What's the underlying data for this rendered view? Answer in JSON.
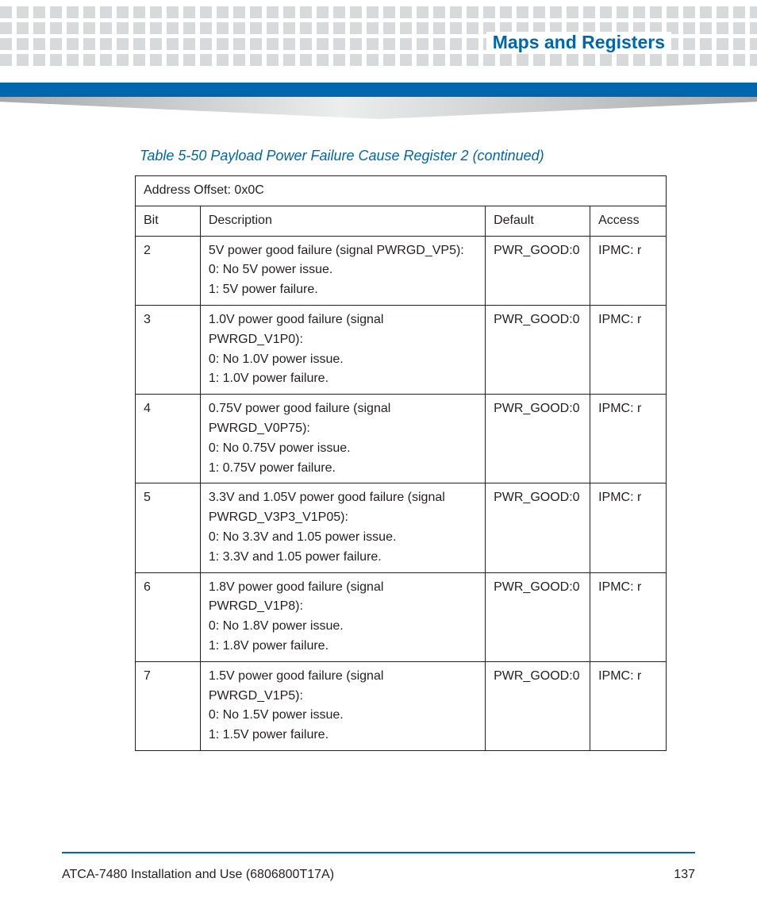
{
  "colors": {
    "brand_blue": "#0067ac",
    "dot_gray": "#d8d9da",
    "text": "#231f20",
    "gradient_dark": "#a6a8ab",
    "gradient_light": "#eceded",
    "background": "#ffffff"
  },
  "header": {
    "section_title": "Maps and Registers"
  },
  "table": {
    "caption": "Table 5-50 Payload Power Failure Cause Register 2 (continued)",
    "address_line": "Address Offset: 0x0C",
    "columns": {
      "bit": "Bit",
      "description": "Description",
      "default": "Default",
      "access": "Access"
    },
    "rows": [
      {
        "bit": "2",
        "desc": [
          "5V power good failure (signal PWRGD_VP5):",
          "0: No 5V power issue.",
          "1: 5V power failure."
        ],
        "default": "PWR_GOOD:0",
        "access": "IPMC: r"
      },
      {
        "bit": "3",
        "desc": [
          "1.0V power good failure (signal PWRGD_V1P0):",
          "0: No 1.0V power issue.",
          "1: 1.0V power failure."
        ],
        "default": "PWR_GOOD:0",
        "access": "IPMC: r"
      },
      {
        "bit": "4",
        "desc": [
          "0.75V power good failure (signal PWRGD_V0P75):",
          "0: No 0.75V power issue.",
          "1: 0.75V power failure."
        ],
        "default": "PWR_GOOD:0",
        "access": "IPMC: r"
      },
      {
        "bit": "5",
        "desc": [
          "3.3V and 1.05V power good failure (signal PWRGD_V3P3_V1P05):",
          "0: No 3.3V and 1.05 power issue.",
          "1: 3.3V and 1.05 power failure."
        ],
        "default": "PWR_GOOD:0",
        "access": "IPMC: r"
      },
      {
        "bit": "6",
        "desc": [
          "1.8V power good failure (signal PWRGD_V1P8):",
          "0: No 1.8V power issue.",
          "1: 1.8V power failure."
        ],
        "default": "PWR_GOOD:0",
        "access": "IPMC: r"
      },
      {
        "bit": "7",
        "desc": [
          "1.5V power good failure (signal PWRGD_V1P5):",
          "0: No 1.5V power issue.",
          "1: 1.5V power failure."
        ],
        "default": "PWR_GOOD:0",
        "access": "IPMC: r"
      }
    ]
  },
  "footer": {
    "doc_title": "ATCA-7480 Installation and Use (6806800T17A)",
    "page_number": "137"
  }
}
